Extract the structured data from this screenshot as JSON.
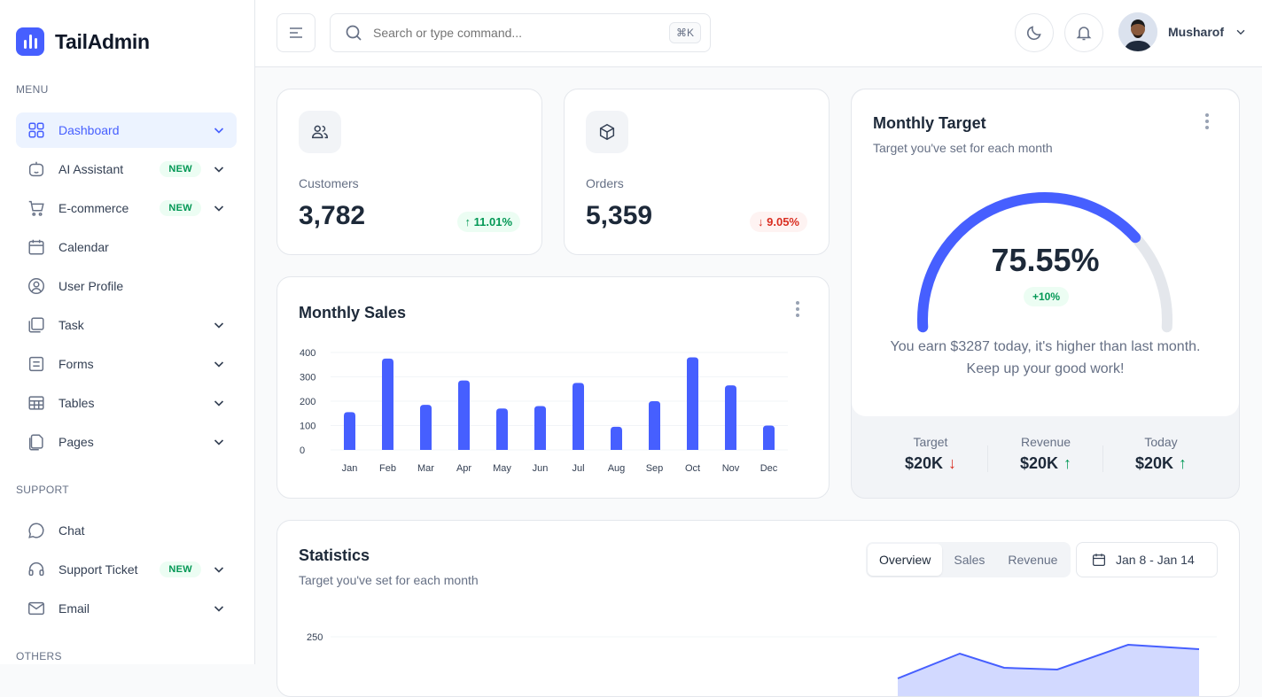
{
  "brand": {
    "name": "TailAdmin",
    "accent": "#465fff"
  },
  "sidebar": {
    "menu_label": "MENU",
    "support_label": "SUPPORT",
    "others_label": "OTHERS",
    "items": [
      {
        "label": "Dashboard",
        "icon": "grid-icon"
      },
      {
        "label": "AI Assistant",
        "icon": "robot-icon",
        "badge": "NEW"
      },
      {
        "label": "E-commerce",
        "icon": "cart-icon",
        "badge": "NEW"
      },
      {
        "label": "Calendar",
        "icon": "calendar-icon"
      },
      {
        "label": "User Profile",
        "icon": "user-circle-icon"
      },
      {
        "label": "Task",
        "icon": "task-icon"
      },
      {
        "label": "Forms",
        "icon": "forms-icon"
      },
      {
        "label": "Tables",
        "icon": "table-icon"
      },
      {
        "label": "Pages",
        "icon": "pages-icon"
      }
    ],
    "support_items": [
      {
        "label": "Chat",
        "icon": "chat-icon"
      },
      {
        "label": "Support Ticket",
        "icon": "headset-icon",
        "badge": "NEW"
      },
      {
        "label": "Email",
        "icon": "mail-icon"
      }
    ]
  },
  "header": {
    "search_placeholder": "Search or type command...",
    "shortcut": "⌘K",
    "user_name": "Musharof"
  },
  "metrics": {
    "customers": {
      "label": "Customers",
      "value": "3,782",
      "change": "11.01%",
      "direction": "up"
    },
    "orders": {
      "label": "Orders",
      "value": "5,359",
      "change": "9.05%",
      "direction": "down"
    }
  },
  "monthly_sales": {
    "title": "Monthly Sales"
  },
  "chart_data": [
    {
      "type": "bar",
      "title": "Monthly Sales",
      "categories": [
        "Jan",
        "Feb",
        "Mar",
        "Apr",
        "May",
        "Jun",
        "Jul",
        "Aug",
        "Sep",
        "Oct",
        "Nov",
        "Dec"
      ],
      "values": [
        155,
        375,
        185,
        285,
        170,
        180,
        275,
        95,
        200,
        380,
        265,
        100
      ],
      "yticks": [
        "400",
        "300",
        "200",
        "100",
        "0"
      ],
      "ylim": [
        0,
        400
      ],
      "grid": true,
      "color": "#465fff"
    },
    {
      "type": "area",
      "title": "Statistics",
      "subtitle": "Target you've set for each month",
      "yticks": [
        "250"
      ],
      "visible": "partial"
    }
  ],
  "monthly_target": {
    "title": "Monthly Target",
    "subtitle": "Target you've set for each month",
    "percent": "75.55%",
    "percent_value": 75.55,
    "change": "+10%",
    "message_line1": "You earn $3287 today, it's higher than last month.",
    "message_line2": "Keep up your good work!",
    "stats": [
      {
        "label": "Target",
        "value": "$20K",
        "direction": "down"
      },
      {
        "label": "Revenue",
        "value": "$20K",
        "direction": "up"
      },
      {
        "label": "Today",
        "value": "$20K",
        "direction": "up"
      }
    ]
  },
  "statistics": {
    "title": "Statistics",
    "subtitle": "Target you've set for each month",
    "tabs": [
      "Overview",
      "Sales",
      "Revenue"
    ],
    "active_tab": "Overview",
    "date_range": "Jan 8 - Jan 14",
    "ytick_top": "250"
  }
}
